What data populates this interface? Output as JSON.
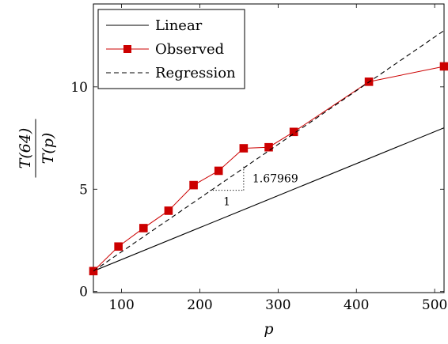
{
  "chart_data": {
    "type": "line",
    "title": "",
    "xlabel": "p",
    "ylabel": {
      "numerator": "T(64)",
      "denominator": "T(p)"
    },
    "xlim": [
      64,
      512
    ],
    "ylim": [
      0,
      14
    ],
    "xticks": [
      100,
      200,
      300,
      400,
      500
    ],
    "yticks": [
      0,
      5,
      10
    ],
    "grid": false,
    "legend_position": "top-left",
    "series": [
      {
        "name": "Linear",
        "style": "solid",
        "color": "#000000",
        "marker": "none",
        "x": [
          64,
          512
        ],
        "y": [
          1,
          8
        ]
      },
      {
        "name": "Observed",
        "style": "solid",
        "color": "#cc0000",
        "marker": "square",
        "x": [
          64,
          96,
          128,
          160,
          192,
          224,
          256,
          288,
          320,
          416,
          512
        ],
        "y": [
          1.0,
          2.2,
          3.1,
          3.95,
          5.2,
          5.9,
          7.0,
          7.05,
          7.8,
          10.25,
          11.0
        ]
      },
      {
        "name": "Regression",
        "style": "dashed",
        "color": "#000000",
        "marker": "none",
        "x": [
          64,
          512
        ],
        "y": [
          1,
          12.75
        ]
      }
    ],
    "slope_annotation": {
      "run_label": "1",
      "rise_label": "1.67969",
      "x_start": 213,
      "x_end": 256,
      "y_start": 4.95,
      "y_end": 6.1
    }
  }
}
